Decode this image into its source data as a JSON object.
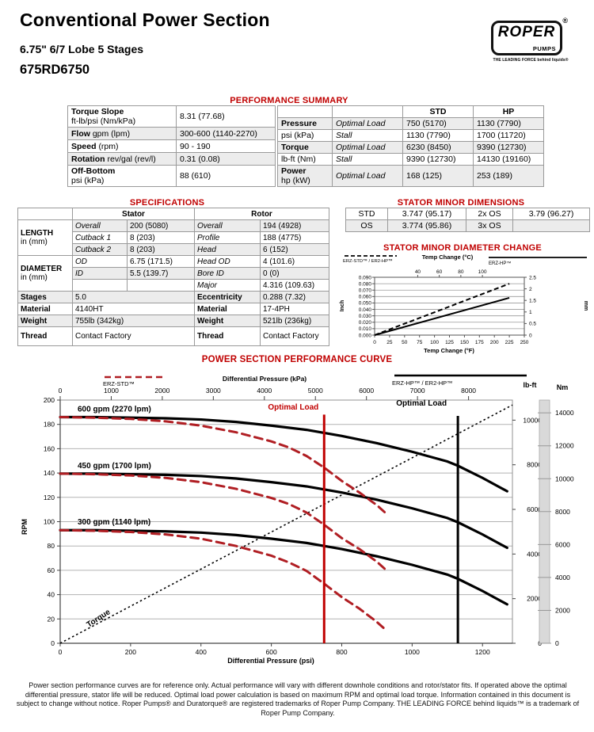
{
  "header": {
    "title": "Conventional Power Section",
    "subtitle": "6.75\" 6/7 Lobe 5 Stages",
    "model": "675RD6750",
    "logo": {
      "brand": "ROPER",
      "sub": "PUMPS",
      "reg": "®",
      "tagline": "THE LEADING FORCE behind liquids®"
    }
  },
  "headings": {
    "performance_summary": "PERFORMANCE SUMMARY",
    "specifications": "SPECIFICATIONS",
    "stator_minor_dimensions": "STATOR MINOR DIMENSIONS",
    "stator_minor_diameter_change": "STATOR MINOR DIAMETER CHANGE",
    "power_curve": "POWER SECTION PERFORMANCE CURVE"
  },
  "perf_left": {
    "torque_slope": {
      "label": "Torque Slope",
      "unit": "ft-lb/psi (Nm/kPa)",
      "value": "8.31 (77.68)"
    },
    "flow": {
      "label": "Flow",
      "unit": "gpm (lpm)",
      "value": "300-600 (1140-2270)"
    },
    "speed": {
      "label": "Speed",
      "unit": "(rpm)",
      "value": "90 - 190"
    },
    "rotation": {
      "label": "Rotation",
      "unit": "rev/gal (rev/l)",
      "value": "0.31 (0.08)"
    },
    "off_bottom": {
      "label": "Off-Bottom",
      "unit": "psi (kPa)",
      "value": "88 (610)"
    }
  },
  "perf_right": {
    "col_std": "STD",
    "col_hp": "HP",
    "pressure": {
      "label": "Pressure",
      "unit": "psi (kPa)",
      "optimal": "Optimal Load",
      "stall": "Stall",
      "optimal_std": "750 (5170)",
      "optimal_hp": "1130 (7790)",
      "stall_std": "1130 (7790)",
      "stall_hp": "1700 (11720)"
    },
    "torque": {
      "label": "Torque",
      "unit": "lb-ft (Nm)",
      "optimal": "Optimal Load",
      "stall": "Stall",
      "optimal_std": "6230 (8450)",
      "optimal_hp": "9390 (12730)",
      "stall_std": "9390 (12730)",
      "stall_hp": "14130 (19160)"
    },
    "power": {
      "label": "Power",
      "unit": "hp (kW)",
      "optimal": "Optimal Load",
      "optimal_std": "168 (125)",
      "optimal_hp": "253 (189)"
    }
  },
  "specs": {
    "col_stator": "Stator",
    "col_rotor": "Rotor",
    "length_label": "LENGTH",
    "length_unit": "in (mm)",
    "diameter_label": "DIAMETER",
    "diameter_unit": "in (mm)",
    "rows": {
      "overall": {
        "s_label": "Overall",
        "s_val": "200 (5080)",
        "r_label": "Overall",
        "r_val": "194 (4928)"
      },
      "cutback1": {
        "s_label": "Cutback 1",
        "s_val": "8 (203)",
        "r_label": "Profile",
        "r_val": "188 (4775)"
      },
      "cutback2": {
        "s_label": "Cutback 2",
        "s_val": "8 (203)",
        "r_label": "Head",
        "r_val": "6 (152)"
      },
      "od": {
        "s_label": "OD",
        "s_val": "6.75 (171.5)",
        "r_label": "Head OD",
        "r_val": "4 (101.6)"
      },
      "id": {
        "s_label": "ID",
        "s_val": "5.5 (139.7)",
        "r_label": "Bore ID",
        "r_val": "0 (0)"
      },
      "major": {
        "s_label": "",
        "s_val": "",
        "r_label": "Major",
        "r_val": "4.316 (109.63)"
      },
      "stages": {
        "label": "Stages",
        "s_val": "5.0",
        "r_label": "Eccentricity",
        "r_val": "0.288 (7.32)"
      },
      "material": {
        "label": "Material",
        "s_val": "4140HT",
        "r_label": "Material",
        "r_val": "17-4PH"
      },
      "weight": {
        "label": "Weight",
        "s_val": "755lb (342kg)",
        "r_label": "Weight",
        "r_val": "521lb (236kg)"
      },
      "thread": {
        "label": "Thread",
        "s_val": "Contact Factory",
        "r_label": "Thread",
        "r_val": "Contact Factory"
      }
    }
  },
  "minor_dims": {
    "row1": {
      "c1": "STD",
      "v1": "3.747 (95.17)",
      "c2": "2x OS",
      "v2": "3.79 (96.27)"
    },
    "row2": {
      "c1": "OS",
      "v1": "3.774 (95.86)",
      "c2": "3x OS",
      "v2": ""
    }
  },
  "footer": "Power section performance curves are for reference only. Actual performance will vary with different downhole conditions and rotor/stator fits. If operated above the optimal differential pressure, stator life will be reduced. Optimal load power calculation is based on maximum RPM and optimal load torque. Information contained in this document is subject to change without notice. Roper Pumps® and Duratorque® are registered trademarks of Roper Pump Company. THE LEADING FORCE behind liquids™ is a trademark of Roper Pump Company.",
  "chart_data": [
    {
      "type": "line",
      "title": "POWER SECTION PERFORMANCE CURVE",
      "xlabel_bottom": "Differential Pressure (psi)",
      "xlabel_top": "Differential Pressure (kPa)",
      "ylabel_left": "RPM",
      "ylabel_right_inner": "lb-ft",
      "ylabel_right_outer": "Nm",
      "xlim_psi": [
        0,
        1285
      ],
      "ylim_rpm": [
        0,
        200
      ],
      "ylim_lbft": [
        0,
        10900
      ],
      "ylim_nm": [
        0,
        14780
      ],
      "x_ticks_psi": [
        0,
        200,
        400,
        600,
        800,
        1000,
        1200
      ],
      "x_ticks_kpa": [
        0,
        1000,
        2000,
        3000,
        4000,
        5000,
        6000,
        7000,
        8000
      ],
      "y_ticks_rpm": [
        0,
        20,
        40,
        60,
        80,
        100,
        120,
        140,
        160,
        180,
        200
      ],
      "y_ticks_lbft": [
        0,
        2000,
        4000,
        6000,
        8000,
        10000
      ],
      "y_ticks_nm": [
        0,
        2000,
        4000,
        6000,
        8000,
        10000,
        12000,
        14000
      ],
      "grid": "horizontal",
      "legend": [
        {
          "label": "ERZ-STD™",
          "style": "dashed",
          "color": "#b01e23"
        },
        {
          "label": "ERZ-HP™ / ER2-HP™",
          "style": "solid",
          "color": "#000000"
        }
      ],
      "flow_labels": [
        "600 gpm (2270 lpm)",
        "450 gpm (1700 lpm)",
        "300 gpm (1140 lpm)"
      ],
      "series": [
        {
          "name": "600 gpm ERZ-HP/ER2-HP",
          "style": "solid",
          "color": "#000000",
          "points": [
            [
              0,
              186
            ],
            [
              100,
              186
            ],
            [
              200,
              185.5
            ],
            [
              300,
              185
            ],
            [
              400,
              184
            ],
            [
              500,
              182
            ],
            [
              600,
              179
            ],
            [
              700,
              175.5
            ],
            [
              750,
              173
            ],
            [
              800,
              170.5
            ],
            [
              900,
              164.5
            ],
            [
              1000,
              157.5
            ],
            [
              1100,
              149.5
            ],
            [
              1130,
              146
            ],
            [
              1200,
              136
            ],
            [
              1270,
              125
            ]
          ]
        },
        {
          "name": "450 gpm ERZ-HP/ER2-HP",
          "style": "solid",
          "color": "#000000",
          "points": [
            [
              0,
              139.5
            ],
            [
              100,
              139.5
            ],
            [
              200,
              139
            ],
            [
              300,
              138.5
            ],
            [
              400,
              137.5
            ],
            [
              500,
              135.5
            ],
            [
              600,
              132.5
            ],
            [
              700,
              129
            ],
            [
              750,
              126.5
            ],
            [
              800,
              124
            ],
            [
              900,
              118
            ],
            [
              1000,
              111
            ],
            [
              1100,
              103
            ],
            [
              1130,
              99.5
            ],
            [
              1200,
              89.5
            ],
            [
              1270,
              78.5
            ]
          ]
        },
        {
          "name": "300 gpm ERZ-HP/ER2-HP",
          "style": "solid",
          "color": "#000000",
          "points": [
            [
              0,
              93
            ],
            [
              100,
              93
            ],
            [
              200,
              92.5
            ],
            [
              300,
              92
            ],
            [
              400,
              91
            ],
            [
              500,
              89
            ],
            [
              600,
              86
            ],
            [
              700,
              82.5
            ],
            [
              750,
              80
            ],
            [
              800,
              77.5
            ],
            [
              900,
              71.5
            ],
            [
              1000,
              64.5
            ],
            [
              1100,
              56.5
            ],
            [
              1130,
              53
            ],
            [
              1200,
              43
            ],
            [
              1270,
              32
            ]
          ]
        },
        {
          "name": "600 gpm ERZ-STD",
          "style": "dashed",
          "color": "#b01e23",
          "points": [
            [
              0,
              186
            ],
            [
              100,
              185.5
            ],
            [
              200,
              184.5
            ],
            [
              300,
              182.5
            ],
            [
              400,
              179
            ],
            [
              500,
              173.5
            ],
            [
              600,
              166
            ],
            [
              650,
              161
            ],
            [
              700,
              154
            ],
            [
              750,
              144.5
            ],
            [
              800,
              133.5
            ],
            [
              850,
              124
            ],
            [
              900,
              113.5
            ],
            [
              925,
              107
            ]
          ]
        },
        {
          "name": "450 gpm ERZ-STD",
          "style": "dashed",
          "color": "#b01e23",
          "points": [
            [
              0,
              139.5
            ],
            [
              100,
              139
            ],
            [
              200,
              138
            ],
            [
              300,
              136
            ],
            [
              400,
              132.5
            ],
            [
              500,
              127
            ],
            [
              600,
              119.5
            ],
            [
              650,
              114.5
            ],
            [
              700,
              107.5
            ],
            [
              750,
              97.5
            ],
            [
              800,
              86.5
            ],
            [
              850,
              77.5
            ],
            [
              900,
              67
            ],
            [
              925,
              60.5
            ]
          ]
        },
        {
          "name": "300 gpm ERZ-STD",
          "style": "dashed",
          "color": "#b01e23",
          "points": [
            [
              0,
              93
            ],
            [
              100,
              92.5
            ],
            [
              200,
              91.5
            ],
            [
              300,
              89.5
            ],
            [
              400,
              86
            ],
            [
              500,
              80
            ],
            [
              600,
              72
            ],
            [
              650,
              66.5
            ],
            [
              700,
              59.5
            ],
            [
              750,
              49
            ],
            [
              800,
              38
            ],
            [
              850,
              28.5
            ],
            [
              900,
              17.5
            ],
            [
              925,
              11
            ]
          ]
        }
      ],
      "torque_line": {
        "label": "Torque",
        "style": "dotted",
        "slope_lbft_per_psi": 8.31,
        "points_psi_lbft": [
          [
            0,
            0
          ],
          [
            1285,
            10680
          ]
        ]
      },
      "optimal_loads": [
        {
          "label": "Optimal Load",
          "psi": 750,
          "color": "#c00000",
          "series": "STD",
          "line_top_rpm": 188
        },
        {
          "label": "Optimal Load",
          "psi": 1130,
          "color": "#000000",
          "series": "HP",
          "line_top_rpm": 187
        }
      ]
    },
    {
      "type": "line",
      "title": "STATOR MINOR DIAMETER CHANGE",
      "xlabel_bottom": "Temp Change (°F)",
      "xlabel_top": "Temp Change (°C)",
      "ylabel_left": "Inch",
      "ylabel_right": "mm",
      "xlim_f": [
        0,
        250
      ],
      "ylim_inch": [
        0,
        0.09
      ],
      "ylim_mm": [
        0,
        2.5
      ],
      "x_ticks_f": [
        0,
        25,
        50,
        75,
        100,
        125,
        150,
        175,
        200,
        225,
        250
      ],
      "x_ticks_c": [
        40,
        60,
        80,
        100
      ],
      "y_ticks_inch": [
        "0.000",
        "0.010",
        "0.020",
        "0.030",
        "0.040",
        "0.050",
        "0.060",
        "0.070",
        "0.080",
        "0.090"
      ],
      "y_ticks_mm": [
        "0",
        "0.5",
        "1",
        "1.5",
        "2",
        "2.5"
      ],
      "grid": "horizontal",
      "legend": [
        {
          "label": "ERZ-STD™ / ER2-HP™",
          "style": "dashed",
          "color": "#000000"
        },
        {
          "label": "ERZ-HP™",
          "style": "solid",
          "color": "#000000"
        }
      ],
      "series": [
        {
          "name": "ERZ-STD™ / ER2-HP™",
          "style": "dashed",
          "color": "#000000",
          "points": [
            [
              0,
              0
            ],
            [
              225,
              0.08
            ]
          ]
        },
        {
          "name": "ERZ-HP™",
          "style": "solid",
          "color": "#000000",
          "points": [
            [
              0,
              0
            ],
            [
              225,
              0.058
            ]
          ]
        }
      ]
    }
  ]
}
